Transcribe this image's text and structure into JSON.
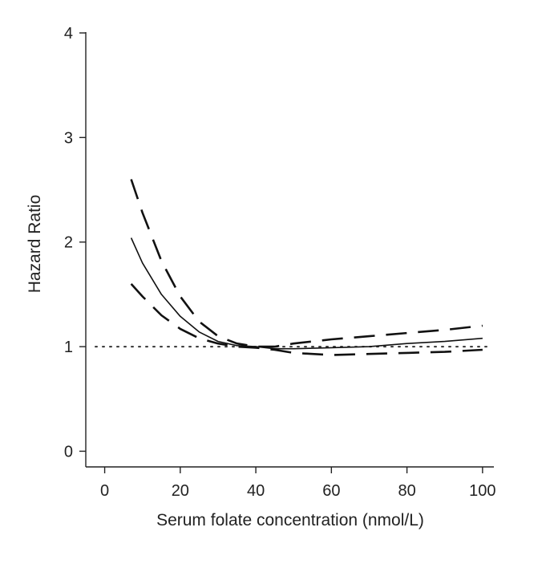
{
  "chart_data": {
    "type": "line",
    "title": "",
    "xlabel": "Serum folate concentration (nmol/L)",
    "ylabel": "Hazard Ratio",
    "xlim": [
      -5,
      103
    ],
    "ylim": [
      -0.15,
      4.1
    ],
    "x_ticks": [
      0,
      20,
      40,
      60,
      80,
      100
    ],
    "y_ticks": [
      0,
      1,
      2,
      3,
      4
    ],
    "grid": false,
    "legend": "none",
    "reference_line": {
      "y": 1,
      "style": "dotted"
    },
    "series": [
      {
        "role": "estimate",
        "style": "solid",
        "x": [
          7,
          10,
          15,
          20,
          25,
          30,
          35,
          40,
          45,
          50,
          60,
          70,
          80,
          90,
          100
        ],
        "y": [
          2.04,
          1.8,
          1.5,
          1.29,
          1.14,
          1.05,
          1.01,
          1.0,
          0.98,
          0.98,
          0.99,
          1.0,
          1.03,
          1.05,
          1.08
        ]
      },
      {
        "role": "upper bound",
        "style": "dashed",
        "x": [
          7,
          10,
          15,
          20,
          25,
          30,
          35,
          40,
          45,
          50,
          60,
          70,
          80,
          90,
          100
        ],
        "y": [
          2.6,
          2.28,
          1.82,
          1.48,
          1.24,
          1.1,
          1.03,
          1.0,
          1.0,
          1.03,
          1.07,
          1.1,
          1.13,
          1.16,
          1.2
        ]
      },
      {
        "role": "lower bound",
        "style": "dashed",
        "x": [
          7,
          10,
          15,
          20,
          25,
          30,
          35,
          40,
          45,
          50,
          60,
          70,
          80,
          90,
          100
        ],
        "y": [
          1.6,
          1.48,
          1.3,
          1.17,
          1.08,
          1.03,
          1.0,
          0.99,
          0.97,
          0.94,
          0.92,
          0.93,
          0.94,
          0.95,
          0.97
        ]
      }
    ]
  }
}
